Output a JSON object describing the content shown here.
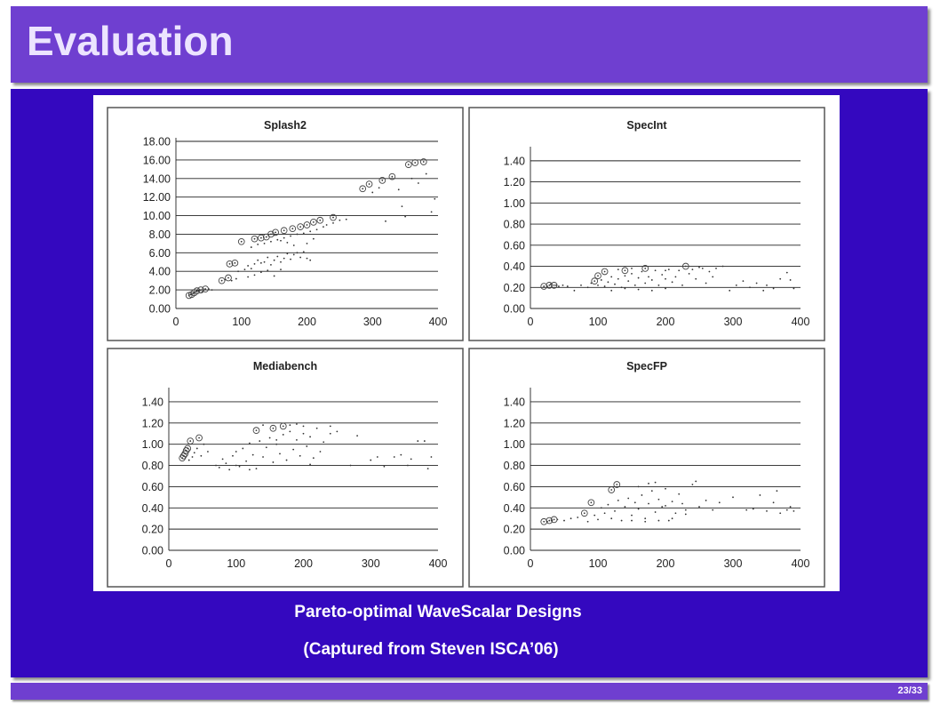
{
  "slide": {
    "title": "Evaluation",
    "caption_line1": "Pareto-optimal WaveScalar Designs",
    "caption_line2": "(Captured from Steven ISCA’06)",
    "page_number": "23/33"
  },
  "colors": {
    "title_bar": "#6f3fd0",
    "panel": "#3408bf",
    "title_text": "#ece4ff",
    "caption": "#ffffff"
  },
  "chart_data": [
    {
      "type": "scatter",
      "title": "Splash2",
      "xlim": [
        0,
        400
      ],
      "ylim": [
        0,
        18
      ],
      "xticks": [
        "0",
        "100",
        "200",
        "300",
        "400"
      ],
      "yticks": [
        "0.00",
        "2.00",
        "4.00",
        "6.00",
        "8.00",
        "10.00",
        "12.00",
        "14.00",
        "16.00",
        "18.00"
      ],
      "grid": true,
      "pareto": [
        [
          20,
          1.4
        ],
        [
          24,
          1.5
        ],
        [
          28,
          1.7
        ],
        [
          32,
          1.9
        ],
        [
          38,
          2.0
        ],
        [
          45,
          2.1
        ],
        [
          70,
          3.0
        ],
        [
          80,
          3.3
        ],
        [
          82,
          4.8
        ],
        [
          90,
          4.9
        ],
        [
          100,
          7.2
        ],
        [
          120,
          7.5
        ],
        [
          130,
          7.6
        ],
        [
          138,
          7.7
        ],
        [
          145,
          8.0
        ],
        [
          152,
          8.2
        ],
        [
          165,
          8.4
        ],
        [
          178,
          8.6
        ],
        [
          190,
          8.8
        ],
        [
          200,
          9.0
        ],
        [
          210,
          9.3
        ],
        [
          220,
          9.5
        ],
        [
          240,
          9.8
        ],
        [
          285,
          12.9
        ],
        [
          295,
          13.4
        ],
        [
          315,
          13.8
        ],
        [
          330,
          14.2
        ],
        [
          355,
          15.5
        ],
        [
          365,
          15.7
        ],
        [
          378,
          15.8
        ]
      ],
      "dots": [
        [
          22,
          1.5
        ],
        [
          26,
          1.6
        ],
        [
          30,
          1.8
        ],
        [
          35,
          1.9
        ],
        [
          40,
          1.8
        ],
        [
          42,
          2.0
        ],
        [
          50,
          2.1
        ],
        [
          55,
          2.0
        ],
        [
          75,
          3.1
        ],
        [
          85,
          3.0
        ],
        [
          92,
          3.2
        ],
        [
          95,
          4.0
        ],
        [
          105,
          4.2
        ],
        [
          110,
          4.6
        ],
        [
          115,
          4.3
        ],
        [
          120,
          4.8
        ],
        [
          125,
          5.2
        ],
        [
          130,
          4.9
        ],
        [
          135,
          5.0
        ],
        [
          140,
          5.5
        ],
        [
          145,
          4.7
        ],
        [
          150,
          5.2
        ],
        [
          155,
          5.6
        ],
        [
          160,
          5.0
        ],
        [
          165,
          5.4
        ],
        [
          170,
          5.9
        ],
        [
          175,
          5.3
        ],
        [
          180,
          5.8
        ],
        [
          185,
          6.0
        ],
        [
          190,
          5.5
        ],
        [
          195,
          6.1
        ],
        [
          200,
          5.4
        ],
        [
          205,
          5.2
        ],
        [
          110,
          3.4
        ],
        [
          120,
          3.6
        ],
        [
          130,
          3.9
        ],
        [
          140,
          4.1
        ],
        [
          150,
          3.5
        ],
        [
          160,
          4.2
        ],
        [
          115,
          6.6
        ],
        [
          125,
          6.9
        ],
        [
          135,
          7.0
        ],
        [
          145,
          7.2
        ],
        [
          155,
          7.4
        ],
        [
          165,
          7.6
        ],
        [
          175,
          7.8
        ],
        [
          185,
          8.0
        ],
        [
          195,
          8.1
        ],
        [
          205,
          8.3
        ],
        [
          215,
          8.5
        ],
        [
          225,
          8.8
        ],
        [
          230,
          9.0
        ],
        [
          240,
          9.2
        ],
        [
          250,
          9.5
        ],
        [
          260,
          9.6
        ],
        [
          200,
          7.0
        ],
        [
          210,
          7.5
        ],
        [
          180,
          6.8
        ],
        [
          170,
          7.1
        ],
        [
          160,
          7.3
        ],
        [
          150,
          7.9
        ],
        [
          300,
          12.5
        ],
        [
          310,
          13.0
        ],
        [
          320,
          9.4
        ],
        [
          340,
          12.8
        ],
        [
          345,
          11.0
        ],
        [
          350,
          9.9
        ],
        [
          360,
          14.0
        ],
        [
          370,
          13.5
        ],
        [
          382,
          14.5
        ],
        [
          390,
          10.4
        ],
        [
          395,
          11.8
        ]
      ]
    },
    {
      "type": "scatter",
      "title": "SpecInt",
      "xlim": [
        0,
        400
      ],
      "ylim": [
        0,
        1.5
      ],
      "xticks": [
        "0",
        "100",
        "200",
        "300",
        "400"
      ],
      "yticks": [
        "0.00",
        "0.20",
        "0.40",
        "0.60",
        "0.80",
        "1.00",
        "1.20",
        "1.40"
      ],
      "grid": true,
      "pareto": [
        [
          20,
          0.21
        ],
        [
          28,
          0.22
        ],
        [
          35,
          0.22
        ],
        [
          95,
          0.26
        ],
        [
          100,
          0.31
        ],
        [
          110,
          0.35
        ],
        [
          140,
          0.36
        ],
        [
          170,
          0.38
        ],
        [
          230,
          0.4
        ]
      ],
      "dots": [
        [
          25,
          0.21
        ],
        [
          30,
          0.23
        ],
        [
          38,
          0.22
        ],
        [
          42,
          0.21
        ],
        [
          48,
          0.22
        ],
        [
          55,
          0.21
        ],
        [
          65,
          0.17
        ],
        [
          75,
          0.22
        ],
        [
          85,
          0.2
        ],
        [
          90,
          0.24
        ],
        [
          100,
          0.22
        ],
        [
          105,
          0.27
        ],
        [
          110,
          0.21
        ],
        [
          115,
          0.25
        ],
        [
          120,
          0.3
        ],
        [
          125,
          0.23
        ],
        [
          130,
          0.28
        ],
        [
          135,
          0.2
        ],
        [
          140,
          0.31
        ],
        [
          145,
          0.26
        ],
        [
          150,
          0.33
        ],
        [
          155,
          0.22
        ],
        [
          160,
          0.29
        ],
        [
          165,
          0.35
        ],
        [
          170,
          0.24
        ],
        [
          175,
          0.3
        ],
        [
          180,
          0.27
        ],
        [
          185,
          0.36
        ],
        [
          190,
          0.22
        ],
        [
          195,
          0.32
        ],
        [
          200,
          0.28
        ],
        [
          205,
          0.37
        ],
        [
          210,
          0.25
        ],
        [
          215,
          0.3
        ],
        [
          220,
          0.36
        ],
        [
          225,
          0.22
        ],
        [
          235,
          0.33
        ],
        [
          240,
          0.37
        ],
        [
          245,
          0.28
        ],
        [
          250,
          0.39
        ],
        [
          255,
          0.38
        ],
        [
          260,
          0.24
        ],
        [
          265,
          0.35
        ],
        [
          270,
          0.3
        ],
        [
          275,
          0.38
        ],
        [
          285,
          0.4
        ],
        [
          295,
          0.17
        ],
        [
          305,
          0.22
        ],
        [
          315,
          0.26
        ],
        [
          325,
          0.2
        ],
        [
          335,
          0.24
        ],
        [
          345,
          0.17
        ],
        [
          350,
          0.22
        ],
        [
          360,
          0.19
        ],
        [
          370,
          0.28
        ],
        [
          380,
          0.34
        ],
        [
          385,
          0.27
        ],
        [
          390,
          0.19
        ],
        [
          120,
          0.17
        ],
        [
          140,
          0.19
        ],
        [
          160,
          0.18
        ],
        [
          180,
          0.17
        ],
        [
          200,
          0.19
        ],
        [
          150,
          0.38
        ],
        [
          130,
          0.37
        ],
        [
          200,
          0.36
        ]
      ]
    },
    {
      "type": "scatter",
      "title": "Mediabench",
      "xlim": [
        0,
        400
      ],
      "ylim": [
        0,
        1.5
      ],
      "xticks": [
        "0",
        "100",
        "200",
        "300",
        "400"
      ],
      "yticks": [
        "0.00",
        "0.20",
        "0.40",
        "0.60",
        "0.80",
        "1.00",
        "1.20",
        "1.40"
      ],
      "grid": true,
      "pareto": [
        [
          20,
          0.87
        ],
        [
          22,
          0.89
        ],
        [
          24,
          0.91
        ],
        [
          26,
          0.94
        ],
        [
          28,
          0.96
        ],
        [
          32,
          1.03
        ],
        [
          45,
          1.06
        ],
        [
          130,
          1.13
        ],
        [
          155,
          1.15
        ],
        [
          170,
          1.17
        ]
      ],
      "dots": [
        [
          30,
          0.85
        ],
        [
          35,
          0.88
        ],
        [
          38,
          0.92
        ],
        [
          42,
          0.96
        ],
        [
          48,
          0.89
        ],
        [
          52,
          1.0
        ],
        [
          58,
          0.93
        ],
        [
          70,
          0.8
        ],
        [
          75,
          0.78
        ],
        [
          80,
          0.86
        ],
        [
          85,
          0.82
        ],
        [
          90,
          0.76
        ],
        [
          95,
          0.89
        ],
        [
          100,
          0.93
        ],
        [
          105,
          0.79
        ],
        [
          110,
          0.96
        ],
        [
          115,
          0.84
        ],
        [
          120,
          1.01
        ],
        [
          125,
          0.9
        ],
        [
          130,
          0.77
        ],
        [
          135,
          1.03
        ],
        [
          140,
          0.88
        ],
        [
          145,
          0.97
        ],
        [
          150,
          1.06
        ],
        [
          155,
          0.83
        ],
        [
          160,
          1.0
        ],
        [
          165,
          0.91
        ],
        [
          170,
          1.09
        ],
        [
          175,
          0.85
        ],
        [
          180,
          1.12
        ],
        [
          185,
          0.95
        ],
        [
          190,
          1.04
        ],
        [
          195,
          0.89
        ],
        [
          200,
          1.17
        ],
        [
          205,
          0.98
        ],
        [
          210,
          1.07
        ],
        [
          215,
          0.87
        ],
        [
          220,
          1.15
        ],
        [
          225,
          0.93
        ],
        [
          230,
          1.02
        ],
        [
          240,
          1.1
        ],
        [
          250,
          1.12
        ],
        [
          270,
          0.8
        ],
        [
          280,
          1.08
        ],
        [
          300,
          0.85
        ],
        [
          310,
          0.88
        ],
        [
          320,
          0.79
        ],
        [
          335,
          0.88
        ],
        [
          345,
          0.9
        ],
        [
          355,
          0.8
        ],
        [
          360,
          0.86
        ],
        [
          370,
          1.03
        ],
        [
          380,
          1.03
        ],
        [
          385,
          0.77
        ],
        [
          390,
          0.88
        ],
        [
          140,
          1.18
        ],
        [
          180,
          1.18
        ],
        [
          200,
          1.1
        ],
        [
          160,
          1.04
        ],
        [
          210,
          0.81
        ],
        [
          190,
          1.19
        ],
        [
          120,
          0.76
        ],
        [
          100,
          0.8
        ],
        [
          240,
          1.17
        ]
      ]
    },
    {
      "type": "scatter",
      "title": "SpecFP",
      "xlim": [
        0,
        400
      ],
      "ylim": [
        0,
        1.5
      ],
      "xticks": [
        "0",
        "100",
        "200",
        "300",
        "400"
      ],
      "yticks": [
        "0.00",
        "0.20",
        "0.40",
        "0.60",
        "0.80",
        "1.00",
        "1.20",
        "1.40"
      ],
      "grid": true,
      "pareto": [
        [
          20,
          0.27
        ],
        [
          28,
          0.28
        ],
        [
          35,
          0.29
        ],
        [
          80,
          0.35
        ],
        [
          90,
          0.45
        ],
        [
          120,
          0.57
        ],
        [
          128,
          0.62
        ]
      ],
      "dots": [
        [
          25,
          0.27
        ],
        [
          32,
          0.28
        ],
        [
          40,
          0.29
        ],
        [
          50,
          0.28
        ],
        [
          60,
          0.3
        ],
        [
          70,
          0.31
        ],
        [
          85,
          0.27
        ],
        [
          95,
          0.33
        ],
        [
          100,
          0.29
        ],
        [
          105,
          0.4
        ],
        [
          110,
          0.35
        ],
        [
          115,
          0.43
        ],
        [
          120,
          0.3
        ],
        [
          125,
          0.37
        ],
        [
          130,
          0.47
        ],
        [
          135,
          0.28
        ],
        [
          140,
          0.41
        ],
        [
          145,
          0.49
        ],
        [
          150,
          0.33
        ],
        [
          155,
          0.45
        ],
        [
          160,
          0.39
        ],
        [
          165,
          0.52
        ],
        [
          170,
          0.3
        ],
        [
          175,
          0.44
        ],
        [
          180,
          0.56
        ],
        [
          185,
          0.36
        ],
        [
          190,
          0.48
        ],
        [
          195,
          0.41
        ],
        [
          200,
          0.58
        ],
        [
          205,
          0.28
        ],
        [
          210,
          0.46
        ],
        [
          215,
          0.35
        ],
        [
          220,
          0.53
        ],
        [
          225,
          0.44
        ],
        [
          230,
          0.38
        ],
        [
          240,
          0.62
        ],
        [
          250,
          0.41
        ],
        [
          260,
          0.47
        ],
        [
          270,
          0.38
        ],
        [
          280,
          0.45
        ],
        [
          300,
          0.5
        ],
        [
          320,
          0.38
        ],
        [
          330,
          0.39
        ],
        [
          340,
          0.52
        ],
        [
          350,
          0.37
        ],
        [
          360,
          0.45
        ],
        [
          365,
          0.56
        ],
        [
          370,
          0.35
        ],
        [
          380,
          0.38
        ],
        [
          385,
          0.41
        ],
        [
          390,
          0.37
        ],
        [
          150,
          0.28
        ],
        [
          170,
          0.27
        ],
        [
          190,
          0.28
        ],
        [
          210,
          0.3
        ],
        [
          230,
          0.34
        ],
        [
          175,
          0.63
        ],
        [
          185,
          0.64
        ],
        [
          160,
          0.6
        ],
        [
          200,
          0.42
        ],
        [
          245,
          0.65
        ]
      ]
    }
  ]
}
